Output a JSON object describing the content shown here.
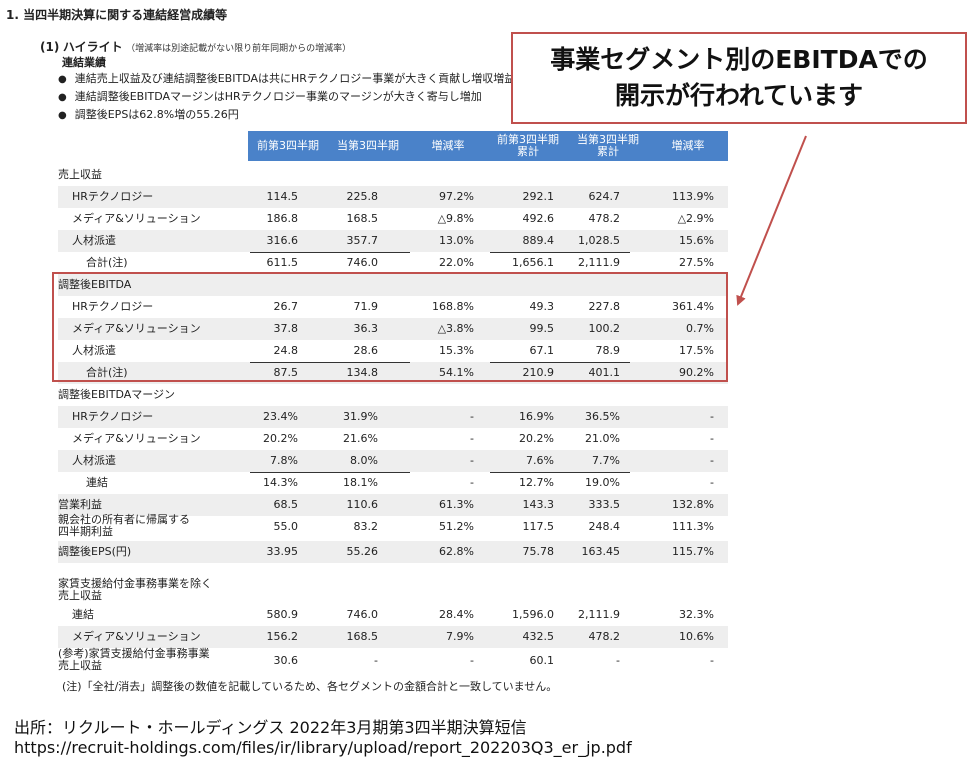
{
  "heading": "1. 当四半期決算に関する連結経営成績等",
  "highlight": {
    "num": "(1)",
    "title": "ハイライト",
    "note": "（増減率は別途記載がない限り前年同期からの増減率）"
  },
  "results_title": "連結業績",
  "bullets": [
    "連結売上収益及び連結調整後EBITDAは共にHRテクノロジー事業が大きく貢献し増収増益",
    "連結調整後EBITDAマージンはHRテクノロジー事業のマージンが大きく寄与し増加",
    "調整後EPSは62.8%増の55.26円"
  ],
  "columns": [
    "前第3四半期",
    "当第3四半期",
    "増減率",
    "前第3四半期\n累計",
    "当第3四半期\n累計",
    "増減率"
  ],
  "rows": [
    {
      "label": "売上収益",
      "indent": 0,
      "values": [
        "",
        "",
        "",
        "",
        "",
        ""
      ],
      "shade": false
    },
    {
      "label": "HRテクノロジー",
      "indent": 14,
      "values": [
        "114.5",
        "225.8",
        "97.2%",
        "292.1",
        "624.7",
        "113.9%"
      ],
      "shade": true
    },
    {
      "label": "メディア&ソリューション",
      "indent": 14,
      "values": [
        "186.8",
        "168.5",
        "△9.8%",
        "492.6",
        "478.2",
        "△2.9%"
      ],
      "shade": false
    },
    {
      "label": "人材派遣",
      "indent": 14,
      "values": [
        "316.6",
        "357.7",
        "13.0%",
        "889.4",
        "1,028.5",
        "15.6%"
      ],
      "shade": true
    },
    {
      "label": "合計(注)",
      "indent": 28,
      "values": [
        "611.5",
        "746.0",
        "22.0%",
        "1,656.1",
        "2,111.9",
        "27.5%"
      ],
      "shade": false
    },
    {
      "label": "調整後EBITDA",
      "indent": 0,
      "values": [
        "",
        "",
        "",
        "",
        "",
        ""
      ],
      "shade": true
    },
    {
      "label": "HRテクノロジー",
      "indent": 14,
      "values": [
        "26.7",
        "71.9",
        "168.8%",
        "49.3",
        "227.8",
        "361.4%"
      ],
      "shade": false
    },
    {
      "label": "メディア&ソリューション",
      "indent": 14,
      "values": [
        "37.8",
        "36.3",
        "△3.8%",
        "99.5",
        "100.2",
        "0.7%"
      ],
      "shade": true
    },
    {
      "label": "人材派遣",
      "indent": 14,
      "values": [
        "24.8",
        "28.6",
        "15.3%",
        "67.1",
        "78.9",
        "17.5%"
      ],
      "shade": false
    },
    {
      "label": "合計(注)",
      "indent": 28,
      "values": [
        "87.5",
        "134.8",
        "54.1%",
        "210.9",
        "401.1",
        "90.2%"
      ],
      "shade": true
    },
    {
      "label": "調整後EBITDAマージン",
      "indent": 0,
      "values": [
        "",
        "",
        "",
        "",
        "",
        ""
      ],
      "shade": false
    },
    {
      "label": "HRテクノロジー",
      "indent": 14,
      "values": [
        "23.4%",
        "31.9%",
        "-",
        "16.9%",
        "36.5%",
        "-"
      ],
      "shade": true
    },
    {
      "label": "メディア&ソリューション",
      "indent": 14,
      "values": [
        "20.2%",
        "21.6%",
        "-",
        "20.2%",
        "21.0%",
        "-"
      ],
      "shade": false
    },
    {
      "label": "人材派遣",
      "indent": 14,
      "values": [
        "7.8%",
        "8.0%",
        "-",
        "7.6%",
        "7.7%",
        "-"
      ],
      "shade": true
    },
    {
      "label": "連結",
      "indent": 28,
      "values": [
        "14.3%",
        "18.1%",
        "-",
        "12.7%",
        "19.0%",
        "-"
      ],
      "shade": false
    },
    {
      "label": "営業利益",
      "indent": 0,
      "values": [
        "68.5",
        "110.6",
        "61.3%",
        "143.3",
        "333.5",
        "132.8%"
      ],
      "shade": true
    },
    {
      "label": "親会社の所有者に帰属する\n四半期利益",
      "indent": 0,
      "values": [
        "55.0",
        "83.2",
        "51.2%",
        "117.5",
        "248.4",
        "111.3%"
      ],
      "shade": false
    },
    {
      "label": "調整後EPS(円)",
      "indent": 0,
      "values": [
        "33.95",
        "55.26",
        "62.8%",
        "75.78",
        "163.45",
        "115.7%"
      ],
      "shade": true
    },
    {
      "label": "家賃支援給付金事務事業を除く\n売上収益",
      "indent": 0,
      "values": [
        "",
        "",
        "",
        "",
        "",
        ""
      ],
      "shade": false
    },
    {
      "label": "連結",
      "indent": 14,
      "values": [
        "580.9",
        "746.0",
        "28.4%",
        "1,596.0",
        "2,111.9",
        "32.3%"
      ],
      "shade": false
    },
    {
      "label": "メディア&ソリューション",
      "indent": 14,
      "values": [
        "156.2",
        "168.5",
        "7.9%",
        "432.5",
        "478.2",
        "10.6%"
      ],
      "shade": true
    },
    {
      "label": "(参考)家賃支援給付金事務事業\n売上収益",
      "indent": 0,
      "values": [
        "30.6",
        "-",
        "-",
        "60.1",
        "-",
        "-"
      ],
      "shade": false
    }
  ],
  "footnote": "(注)「全社/消去」調整後の数値を記載しているため、各セグメントの金額合計と一致していません。",
  "callout": [
    "事業セグメント別のEBITDAでの",
    "開示が行われています"
  ],
  "source": "出所：リクルート・ホールディングス 2022年3月期第3四半期決算短信",
  "url": "https://recruit-holdings.com/files/ir/library/upload/report_202203Q3_er_jp.pdf",
  "colors": {
    "header": "#4a82c9",
    "shade": "#eeeeee",
    "highlight": "#c0504d"
  }
}
